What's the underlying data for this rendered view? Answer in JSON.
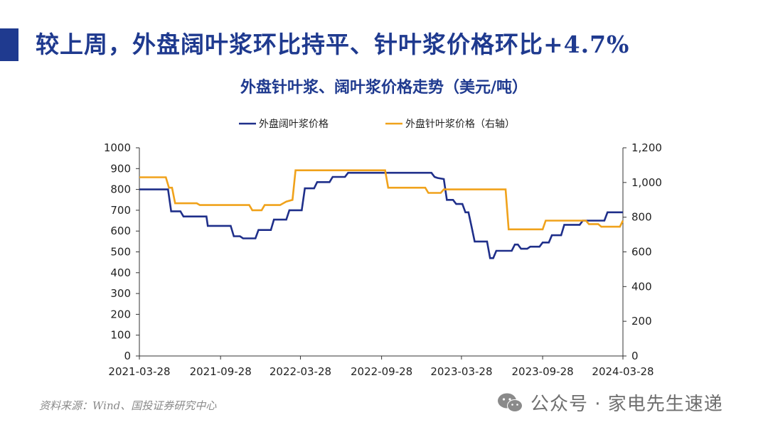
{
  "header": {
    "headline": "较上周，外盘阔叶浆环比持平、针叶浆价格环比+4.7%",
    "accent_color": "#1f3a8f"
  },
  "chart_data": {
    "type": "line",
    "title": "外盘针叶浆、阔叶浆价格走势（美元/吨）",
    "x_ticks": [
      "2021-03-28",
      "2021-09-28",
      "2022-03-28",
      "2022-09-28",
      "2023-03-28",
      "2023-09-28",
      "2024-03-28"
    ],
    "xlim": [
      "2021-03-28",
      "2024-03-28"
    ],
    "y_left": {
      "ylim": [
        0,
        1000
      ],
      "ticks": [
        "0",
        "100",
        "200",
        "300",
        "400",
        "500",
        "600",
        "700",
        "800",
        "900",
        "1000"
      ]
    },
    "y_right": {
      "ylim": [
        0,
        1200
      ],
      "ticks": [
        "0",
        "200",
        "400",
        "600",
        "800",
        "1,000",
        "1,200"
      ]
    },
    "legend_position": "top-center",
    "grid": false,
    "series": [
      {
        "name": "外盘阔叶浆价格",
        "axis": "left",
        "color": "#1f2f8a",
        "step": true,
        "points": [
          [
            "2021-03-28",
            800
          ],
          [
            "2021-06-01",
            800
          ],
          [
            "2021-06-08",
            695
          ],
          [
            "2021-06-29",
            695
          ],
          [
            "2021-07-06",
            670
          ],
          [
            "2021-08-27",
            670
          ],
          [
            "2021-08-30",
            625
          ],
          [
            "2021-10-21",
            625
          ],
          [
            "2021-10-28",
            575
          ],
          [
            "2021-11-11",
            575
          ],
          [
            "2021-11-18",
            565
          ],
          [
            "2021-12-16",
            565
          ],
          [
            "2021-12-23",
            605
          ],
          [
            "2022-01-20",
            605
          ],
          [
            "2022-01-27",
            655
          ],
          [
            "2022-02-24",
            655
          ],
          [
            "2022-03-03",
            700
          ],
          [
            "2022-03-31",
            700
          ],
          [
            "2022-04-07",
            805
          ],
          [
            "2022-04-28",
            805
          ],
          [
            "2022-05-05",
            835
          ],
          [
            "2022-06-02",
            835
          ],
          [
            "2022-06-09",
            860
          ],
          [
            "2022-07-07",
            860
          ],
          [
            "2022-07-14",
            880
          ],
          [
            "2023-01-19",
            880
          ],
          [
            "2023-01-26",
            860
          ],
          [
            "2023-02-02",
            855
          ],
          [
            "2023-02-16",
            850
          ],
          [
            "2023-02-23",
            750
          ],
          [
            "2023-03-09",
            750
          ],
          [
            "2023-03-16",
            730
          ],
          [
            "2023-03-30",
            730
          ],
          [
            "2023-04-06",
            690
          ],
          [
            "2023-04-13",
            690
          ],
          [
            "2023-04-20",
            620
          ],
          [
            "2023-04-27",
            550
          ],
          [
            "2023-05-25",
            550
          ],
          [
            "2023-06-01",
            470
          ],
          [
            "2023-06-08",
            470
          ],
          [
            "2023-06-15",
            505
          ],
          [
            "2023-07-20",
            505
          ],
          [
            "2023-07-27",
            535
          ],
          [
            "2023-08-03",
            535
          ],
          [
            "2023-08-10",
            515
          ],
          [
            "2023-08-24",
            515
          ],
          [
            "2023-08-31",
            525
          ],
          [
            "2023-09-21",
            525
          ],
          [
            "2023-09-28",
            545
          ],
          [
            "2023-10-12",
            545
          ],
          [
            "2023-10-19",
            580
          ],
          [
            "2023-11-09",
            580
          ],
          [
            "2023-11-16",
            630
          ],
          [
            "2023-12-21",
            630
          ],
          [
            "2023-12-28",
            650
          ],
          [
            "2024-02-15",
            650
          ],
          [
            "2024-02-22",
            690
          ],
          [
            "2024-03-21",
            690
          ],
          [
            "2024-03-28",
            690
          ]
        ]
      },
      {
        "name": "外盘针叶浆价格（右轴）",
        "axis": "right",
        "color": "#f0a21b",
        "step": true,
        "points": [
          [
            "2021-03-28",
            1030
          ],
          [
            "2021-05-27",
            1030
          ],
          [
            "2021-06-03",
            970
          ],
          [
            "2021-06-10",
            970
          ],
          [
            "2021-06-17",
            880
          ],
          [
            "2021-08-05",
            880
          ],
          [
            "2021-08-12",
            870
          ],
          [
            "2021-12-02",
            870
          ],
          [
            "2021-12-09",
            840
          ],
          [
            "2021-12-30",
            840
          ],
          [
            "2022-01-06",
            870
          ],
          [
            "2022-02-10",
            870
          ],
          [
            "2022-02-17",
            880
          ],
          [
            "2022-02-24",
            890
          ],
          [
            "2022-03-10",
            900
          ],
          [
            "2022-03-17",
            1070
          ],
          [
            "2022-10-06",
            1070
          ],
          [
            "2022-10-13",
            970
          ],
          [
            "2023-01-05",
            970
          ],
          [
            "2023-01-12",
            940
          ],
          [
            "2023-02-09",
            940
          ],
          [
            "2023-02-16",
            960
          ],
          [
            "2023-07-06",
            960
          ],
          [
            "2023-07-13",
            730
          ],
          [
            "2023-09-28",
            730
          ],
          [
            "2023-10-05",
            780
          ],
          [
            "2024-01-04",
            780
          ],
          [
            "2024-01-11",
            760
          ],
          [
            "2024-02-01",
            760
          ],
          [
            "2024-02-08",
            745
          ],
          [
            "2024-03-21",
            745
          ],
          [
            "2024-03-28",
            780
          ]
        ]
      }
    ]
  },
  "footer": {
    "source": "资料来源：Wind、国投证券研究中心",
    "watermark": "公众号 · 家电先生速递",
    "watermark_icon": "wechat-icon"
  }
}
